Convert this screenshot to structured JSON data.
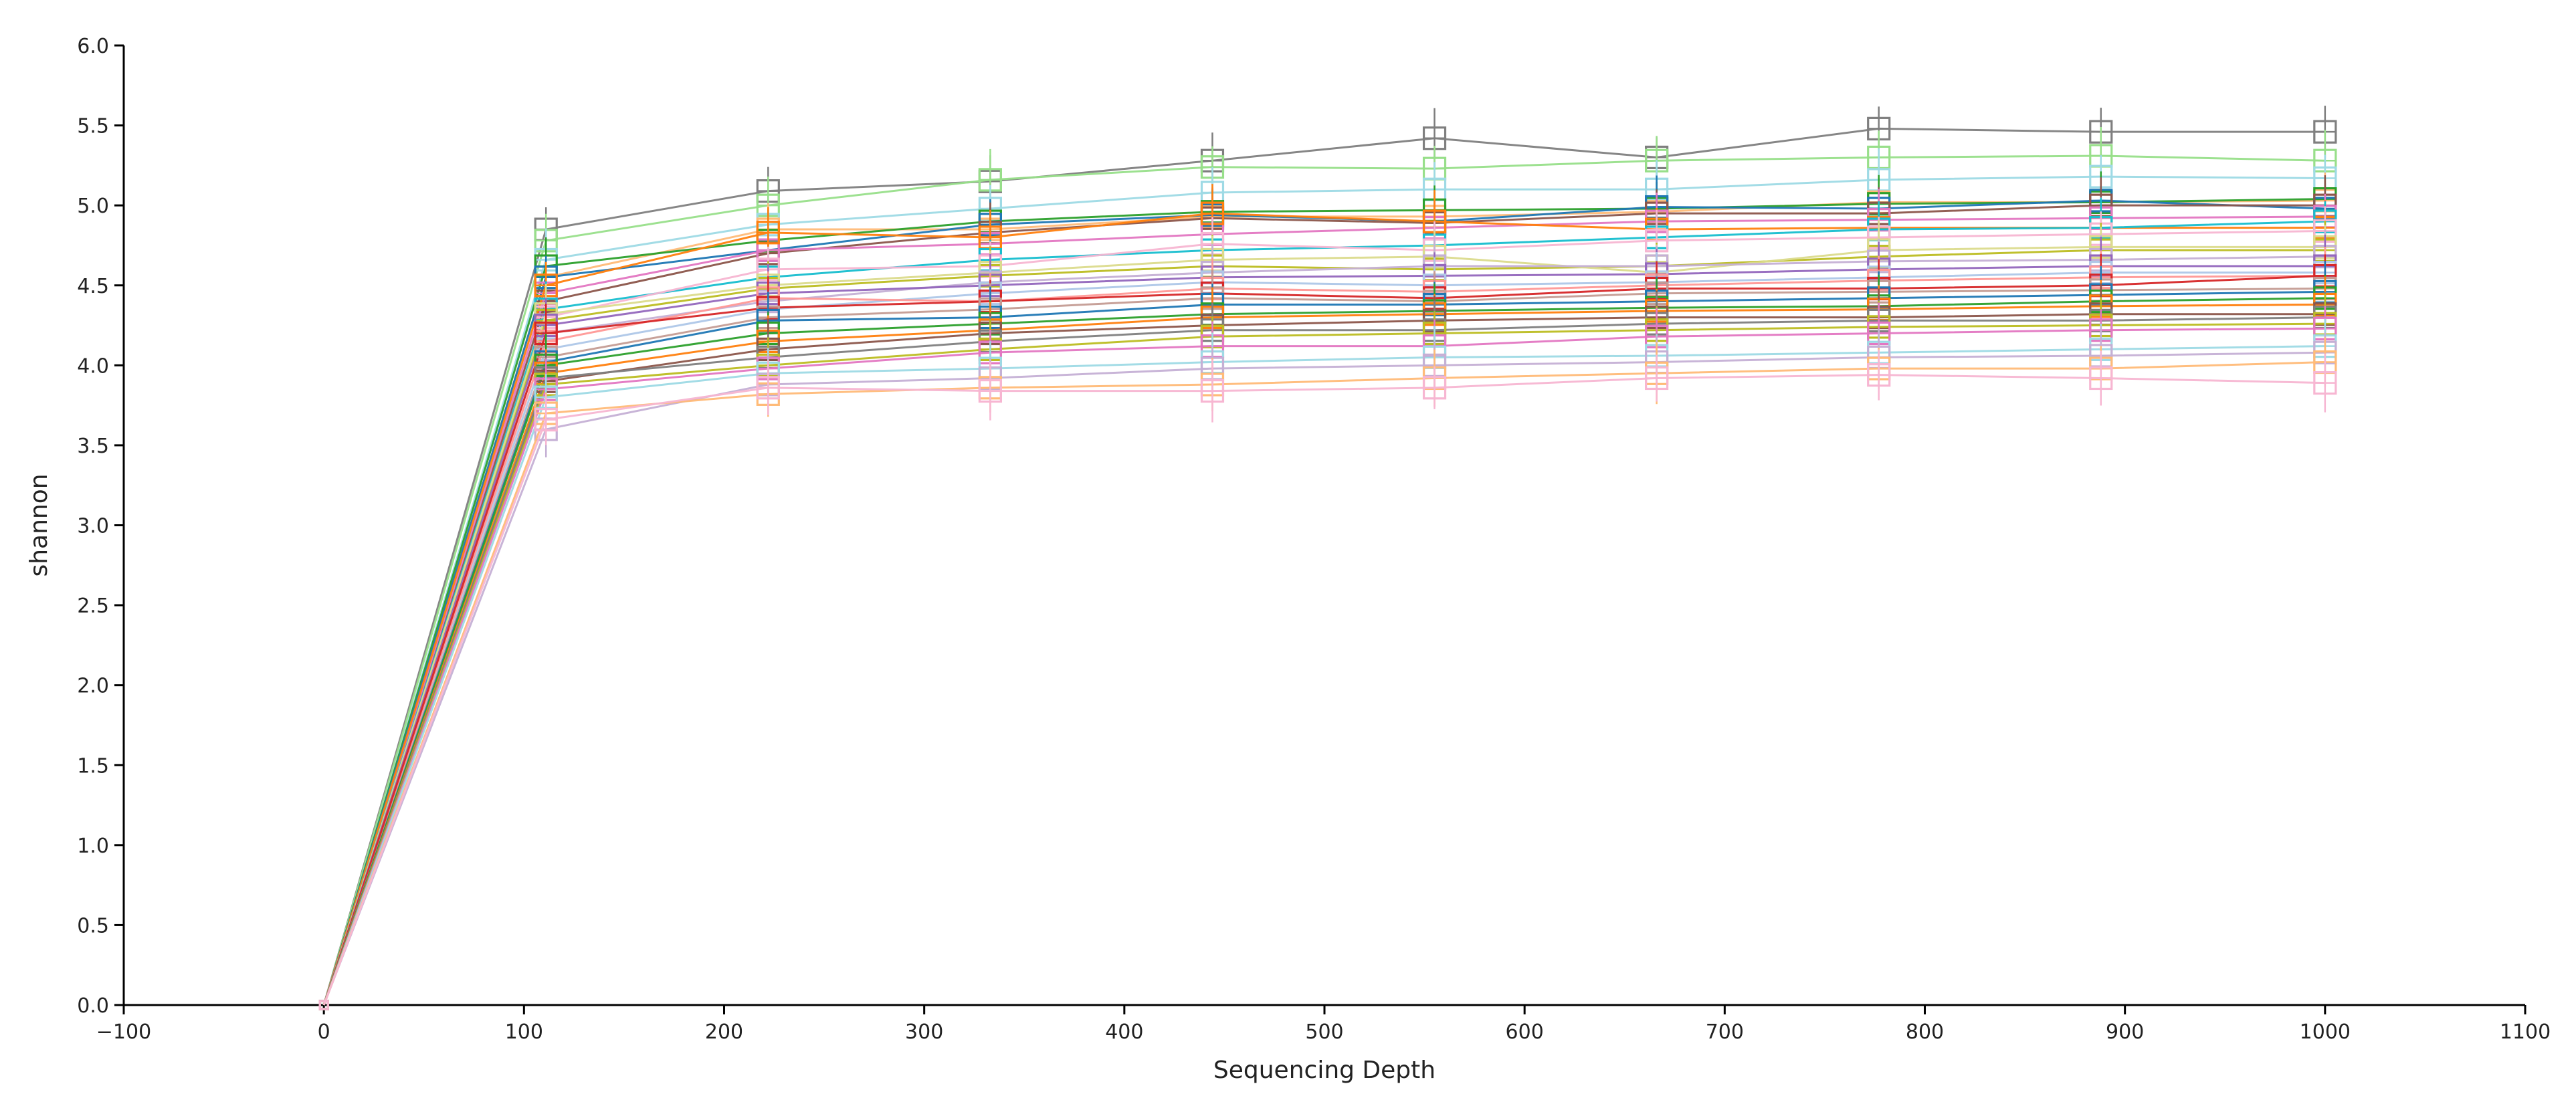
{
  "chart_data": {
    "type": "line",
    "title": "",
    "xlabel": "Sequencing Depth",
    "ylabel": "shannon",
    "xlim": [
      -100,
      1100
    ],
    "ylim": [
      0,
      6
    ],
    "x_ticks": [
      "−100",
      "0",
      "100",
      "200",
      "300",
      "400",
      "500",
      "600",
      "700",
      "800",
      "900",
      "1000",
      "1100"
    ],
    "y_ticks": [
      "0.0",
      "0.5",
      "1.0",
      "1.5",
      "2.0",
      "2.5",
      "3.0",
      "3.5",
      "4.0",
      "4.5",
      "5.0",
      "5.5",
      "6.0"
    ],
    "x": [
      0,
      111,
      222,
      333,
      444,
      555,
      666,
      777,
      888,
      1000
    ],
    "markers": "open-square boxplots at each depth",
    "grid": false,
    "series": [
      {
        "color": "#7f7f7f",
        "values": [
          0,
          4.85,
          5.09,
          5.15,
          5.28,
          5.42,
          5.3,
          5.48,
          5.46,
          5.46
        ]
      },
      {
        "color": "#98df8a",
        "values": [
          0,
          4.78,
          5.0,
          5.16,
          5.24,
          5.23,
          5.28,
          5.3,
          5.31,
          5.28
        ]
      },
      {
        "color": "#9edae5",
        "values": [
          0,
          4.66,
          4.88,
          4.98,
          5.08,
          5.1,
          5.1,
          5.16,
          5.18,
          5.17
        ]
      },
      {
        "color": "#ffbb78",
        "values": [
          0,
          4.55,
          4.85,
          4.85,
          4.93,
          4.93,
          4.96,
          5.02,
          5.02,
          5.03
        ]
      },
      {
        "color": "#2ca02c",
        "values": [
          0,
          4.62,
          4.78,
          4.9,
          4.96,
          4.97,
          4.98,
          5.01,
          5.02,
          5.04
        ]
      },
      {
        "color": "#1f77b4",
        "values": [
          0,
          4.55,
          4.72,
          4.88,
          4.94,
          4.9,
          4.99,
          4.98,
          5.03,
          4.98
        ]
      },
      {
        "color": "#8c564b",
        "values": [
          0,
          4.4,
          4.7,
          4.83,
          4.92,
          4.89,
          4.95,
          4.95,
          5.0,
          5.0
        ]
      },
      {
        "color": "#e377c2",
        "values": [
          0,
          4.45,
          4.72,
          4.76,
          4.82,
          4.86,
          4.9,
          4.91,
          4.92,
          4.93
        ]
      },
      {
        "color": "#ff7f0e",
        "values": [
          0,
          4.5,
          4.83,
          4.8,
          4.95,
          4.9,
          4.85,
          4.86,
          4.86,
          4.86
        ]
      },
      {
        "color": "#17becf",
        "values": [
          0,
          4.35,
          4.55,
          4.66,
          4.72,
          4.75,
          4.8,
          4.85,
          4.86,
          4.9
        ]
      },
      {
        "color": "#f7b6d2",
        "values": [
          0,
          4.3,
          4.6,
          4.62,
          4.76,
          4.72,
          4.78,
          4.8,
          4.82,
          4.84
        ]
      },
      {
        "color": "#bcbd22",
        "values": [
          0,
          4.28,
          4.48,
          4.56,
          4.62,
          4.6,
          4.62,
          4.68,
          4.72,
          4.72
        ]
      },
      {
        "color": "#dbdb8d",
        "values": [
          0,
          4.32,
          4.5,
          4.58,
          4.66,
          4.68,
          4.58,
          4.72,
          4.74,
          4.74
        ]
      },
      {
        "color": "#c5b0d5",
        "values": [
          0,
          4.2,
          4.4,
          4.52,
          4.58,
          4.62,
          4.62,
          4.65,
          4.66,
          4.68
        ]
      },
      {
        "color": "#9467bd",
        "values": [
          0,
          4.25,
          4.45,
          4.5,
          4.55,
          4.56,
          4.57,
          4.6,
          4.62,
          4.62
        ]
      },
      {
        "color": "#aec7e8",
        "values": [
          0,
          4.1,
          4.35,
          4.45,
          4.52,
          4.5,
          4.52,
          4.55,
          4.58,
          4.58
        ]
      },
      {
        "color": "#ff9896",
        "values": [
          0,
          4.15,
          4.42,
          4.4,
          4.48,
          4.46,
          4.5,
          4.53,
          4.55,
          4.56
        ]
      },
      {
        "color": "#d62728",
        "values": [
          0,
          4.2,
          4.36,
          4.4,
          4.45,
          4.42,
          4.48,
          4.48,
          4.5,
          4.56
        ]
      },
      {
        "color": "#c49c94",
        "values": [
          0,
          4.05,
          4.3,
          4.35,
          4.42,
          4.4,
          4.45,
          4.46,
          4.47,
          4.48
        ]
      },
      {
        "color": "#1f77b4",
        "values": [
          0,
          4.02,
          4.28,
          4.3,
          4.38,
          4.38,
          4.4,
          4.42,
          4.44,
          4.46
        ]
      },
      {
        "color": "#2ca02c",
        "values": [
          0,
          4.0,
          4.2,
          4.26,
          4.32,
          4.34,
          4.36,
          4.37,
          4.4,
          4.42
        ]
      },
      {
        "color": "#ff7f0e",
        "values": [
          0,
          3.95,
          4.15,
          4.22,
          4.3,
          4.32,
          4.34,
          4.35,
          4.37,
          4.38
        ]
      },
      {
        "color": "#8c564b",
        "values": [
          0,
          3.9,
          4.1,
          4.2,
          4.25,
          4.28,
          4.3,
          4.3,
          4.32,
          4.32
        ]
      },
      {
        "color": "#7f7f7f",
        "values": [
          0,
          3.92,
          4.05,
          4.15,
          4.22,
          4.22,
          4.26,
          4.28,
          4.28,
          4.3
        ]
      },
      {
        "color": "#bcbd22",
        "values": [
          0,
          3.88,
          4.0,
          4.1,
          4.18,
          4.2,
          4.22,
          4.24,
          4.25,
          4.26
        ]
      },
      {
        "color": "#e377c2",
        "values": [
          0,
          3.85,
          3.98,
          4.08,
          4.12,
          4.12,
          4.18,
          4.2,
          4.22,
          4.23
        ]
      },
      {
        "color": "#9edae5",
        "values": [
          0,
          3.8,
          3.95,
          3.98,
          4.02,
          4.05,
          4.06,
          4.08,
          4.1,
          4.12
        ]
      },
      {
        "color": "#c5b0d5",
        "values": [
          0,
          3.6,
          3.88,
          3.92,
          3.98,
          4.0,
          4.02,
          4.05,
          4.06,
          4.08
        ]
      },
      {
        "color": "#ffbb78",
        "values": [
          0,
          3.7,
          3.82,
          3.86,
          3.88,
          3.92,
          3.95,
          3.98,
          3.98,
          4.02
        ]
      },
      {
        "color": "#f7b6d2",
        "values": [
          0,
          3.66,
          3.86,
          3.84,
          3.84,
          3.86,
          3.92,
          3.94,
          3.92,
          3.89
        ]
      }
    ]
  }
}
